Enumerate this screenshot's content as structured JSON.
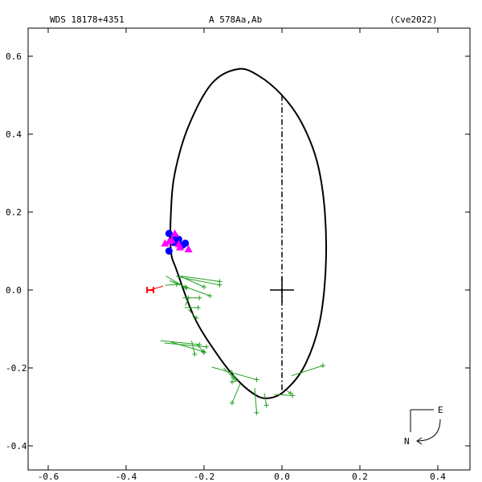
{
  "header": {
    "left": "WDS 18178+4351",
    "center": "A   578Aa,Ab",
    "right": "(Cve2022)"
  },
  "compass": {
    "east": "E",
    "north": "N"
  },
  "chart_data": {
    "type": "scatter",
    "title": "",
    "xlabel": "",
    "ylabel": "",
    "xlim": [
      -0.62,
      0.5
    ],
    "ylim": [
      -0.47,
      0.65
    ],
    "xticks": [
      {
        "v": -0.6,
        "label": "-0.6"
      },
      {
        "v": -0.4,
        "label": "-0.4"
      },
      {
        "v": -0.2,
        "label": "-0.2"
      },
      {
        "v": 0.0,
        "label": "0.0"
      },
      {
        "v": 0.2,
        "label": "0.2"
      },
      {
        "v": 0.4,
        "label": "0.4"
      }
    ],
    "yticks": [
      {
        "v": 0.6,
        "label": "0.6"
      },
      {
        "v": 0.4,
        "label": "0.4"
      },
      {
        "v": 0.2,
        "label": "0.2"
      },
      {
        "v": 0.0,
        "label": "0.0"
      },
      {
        "v": -0.2,
        "label": "-0.2"
      },
      {
        "v": -0.4,
        "label": "-0.4"
      }
    ],
    "colors": {
      "orbit": "#000000",
      "green_obs": "#22a022",
      "blue_obs": "#0000ff",
      "magenta_obs": "#ff00ff",
      "red_obs": "#ff0000"
    },
    "orbit": {
      "points": [
        [
          -0.113,
          0.567
        ],
        [
          -0.06,
          0.55
        ],
        [
          0.0,
          0.5
        ],
        [
          0.05,
          0.43
        ],
        [
          0.09,
          0.33
        ],
        [
          0.11,
          0.2
        ],
        [
          0.112,
          0.05
        ],
        [
          0.095,
          -0.09
        ],
        [
          0.055,
          -0.2
        ],
        [
          0.003,
          -0.262
        ],
        [
          -0.04,
          -0.278
        ],
        [
          -0.075,
          -0.265
        ],
        [
          -0.12,
          -0.225
        ],
        [
          -0.17,
          -0.16
        ],
        [
          -0.225,
          -0.07
        ],
        [
          -0.27,
          0.05
        ],
        [
          -0.285,
          0.1
        ],
        [
          -0.285,
          0.2
        ],
        [
          -0.275,
          0.3
        ],
        [
          -0.24,
          0.42
        ],
        [
          -0.18,
          0.53
        ],
        [
          -0.113,
          0.567
        ]
      ],
      "line_of_nodes": [
        [
          0.0,
          0.5
        ],
        [
          0.0,
          -0.27
        ]
      ],
      "primary": [
        0.0,
        0.0
      ]
    },
    "green": [
      [
        [
          -0.298,
          0.036
        ],
        [
          -0.245,
          0.005
        ]
      ],
      [
        [
          -0.3,
          0.012
        ],
        [
          -0.27,
          0.014
        ]
      ],
      [
        [
          -0.288,
          0.024
        ],
        [
          -0.248,
          0.008
        ]
      ],
      [
        [
          -0.28,
          0.02
        ],
        [
          -0.185,
          -0.015
        ]
      ],
      [
        [
          -0.272,
          0.035
        ],
        [
          -0.16,
          0.013
        ]
      ],
      [
        [
          -0.262,
          0.036
        ],
        [
          -0.16,
          0.022
        ]
      ],
      [
        [
          -0.258,
          0.034
        ],
        [
          -0.2,
          0.008
        ]
      ],
      [
        [
          -0.255,
          -0.02
        ],
        [
          -0.212,
          -0.02
        ]
      ],
      [
        [
          -0.25,
          -0.045
        ],
        [
          -0.215,
          -0.045
        ]
      ],
      [
        [
          -0.24,
          -0.05
        ],
        [
          -0.22,
          -0.072
        ]
      ],
      [
        [
          -0.248,
          -0.04
        ],
        [
          -0.24,
          -0.02
        ]
      ],
      [
        [
          -0.312,
          -0.13
        ],
        [
          -0.212,
          -0.14
        ]
      ],
      [
        [
          -0.302,
          -0.136
        ],
        [
          -0.194,
          -0.146
        ]
      ],
      [
        [
          -0.287,
          -0.133
        ],
        [
          -0.202,
          -0.158
        ]
      ],
      [
        [
          -0.232,
          -0.13
        ],
        [
          -0.224,
          -0.165
        ]
      ],
      [
        [
          -0.22,
          -0.138
        ],
        [
          -0.2,
          -0.16
        ]
      ],
      [
        [
          -0.18,
          -0.198
        ],
        [
          -0.065,
          -0.23
        ]
      ],
      [
        [
          -0.15,
          -0.2
        ],
        [
          -0.125,
          -0.225
        ]
      ],
      [
        [
          -0.13,
          -0.205
        ],
        [
          -0.12,
          -0.228
        ]
      ],
      [
        [
          -0.112,
          -0.232
        ],
        [
          -0.128,
          -0.236
        ]
      ],
      [
        [
          -0.107,
          -0.24
        ],
        [
          -0.128,
          -0.29
        ]
      ],
      [
        [
          -0.07,
          -0.252
        ],
        [
          -0.065,
          -0.315
        ]
      ],
      [
        [
          -0.045,
          -0.265
        ],
        [
          -0.04,
          -0.296
        ]
      ],
      [
        [
          -0.02,
          -0.268
        ],
        [
          0.027,
          -0.271
        ]
      ],
      [
        [
          0.012,
          -0.258
        ],
        [
          0.022,
          -0.265
        ]
      ],
      [
        [
          0.025,
          -0.22
        ],
        [
          0.105,
          -0.194
        ]
      ]
    ],
    "blue": [
      [
        -0.29,
        0.145
      ],
      [
        -0.278,
        0.122
      ],
      [
        -0.265,
        0.13
      ],
      [
        -0.255,
        0.115
      ],
      [
        -0.248,
        0.12
      ],
      [
        -0.29,
        0.1
      ],
      [
        -0.275,
        0.138
      ]
    ],
    "magenta": [
      [
        -0.3,
        0.12
      ],
      [
        -0.283,
        0.128
      ],
      [
        -0.275,
        0.145
      ],
      [
        -0.262,
        0.11
      ],
      [
        -0.24,
        0.105
      ],
      [
        -0.265,
        0.118
      ],
      [
        -0.29,
        0.125
      ]
    ],
    "red": [
      [
        [
          -0.338,
          0.0
        ],
        [
          -0.305,
          0.01
        ]
      ]
    ]
  }
}
